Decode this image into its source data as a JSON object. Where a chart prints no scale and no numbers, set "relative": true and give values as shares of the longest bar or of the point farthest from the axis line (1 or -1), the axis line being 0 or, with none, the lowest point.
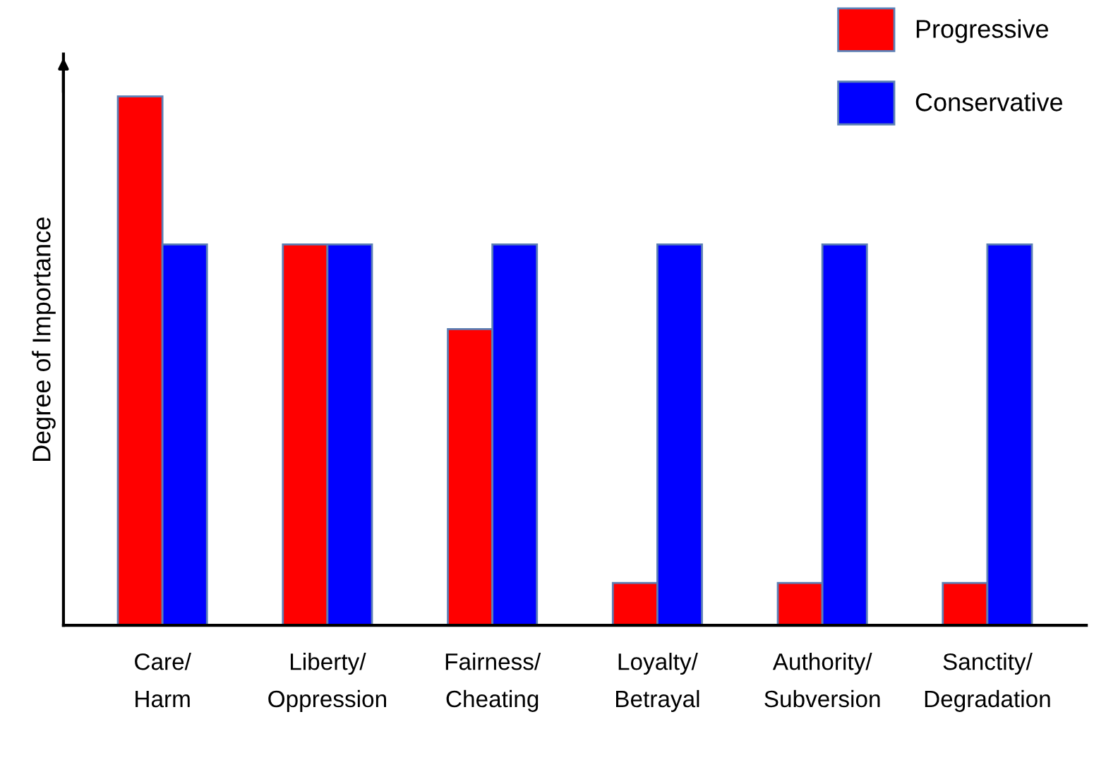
{
  "chart_data": {
    "type": "bar",
    "relative": true,
    "ylabel": "Degree of Importance",
    "categories": [
      "Care/\nHarm",
      "Liberty/\nOppression",
      "Fairness/\nCheating",
      "Loyalty/\nBetrayal",
      "Authority/\nSubversion",
      "Sanctity/\nDegradation"
    ],
    "series": [
      {
        "name": "Progressive",
        "color": "#ff0000",
        "values": [
          1,
          0.72,
          0.56,
          0.08,
          0.08,
          0.08
        ]
      },
      {
        "name": "Conservative",
        "color": "#0000ff",
        "values": [
          0.72,
          0.72,
          0.72,
          0.72,
          0.72,
          0.72
        ]
      }
    ],
    "legend": "top right",
    "grid": false
  }
}
